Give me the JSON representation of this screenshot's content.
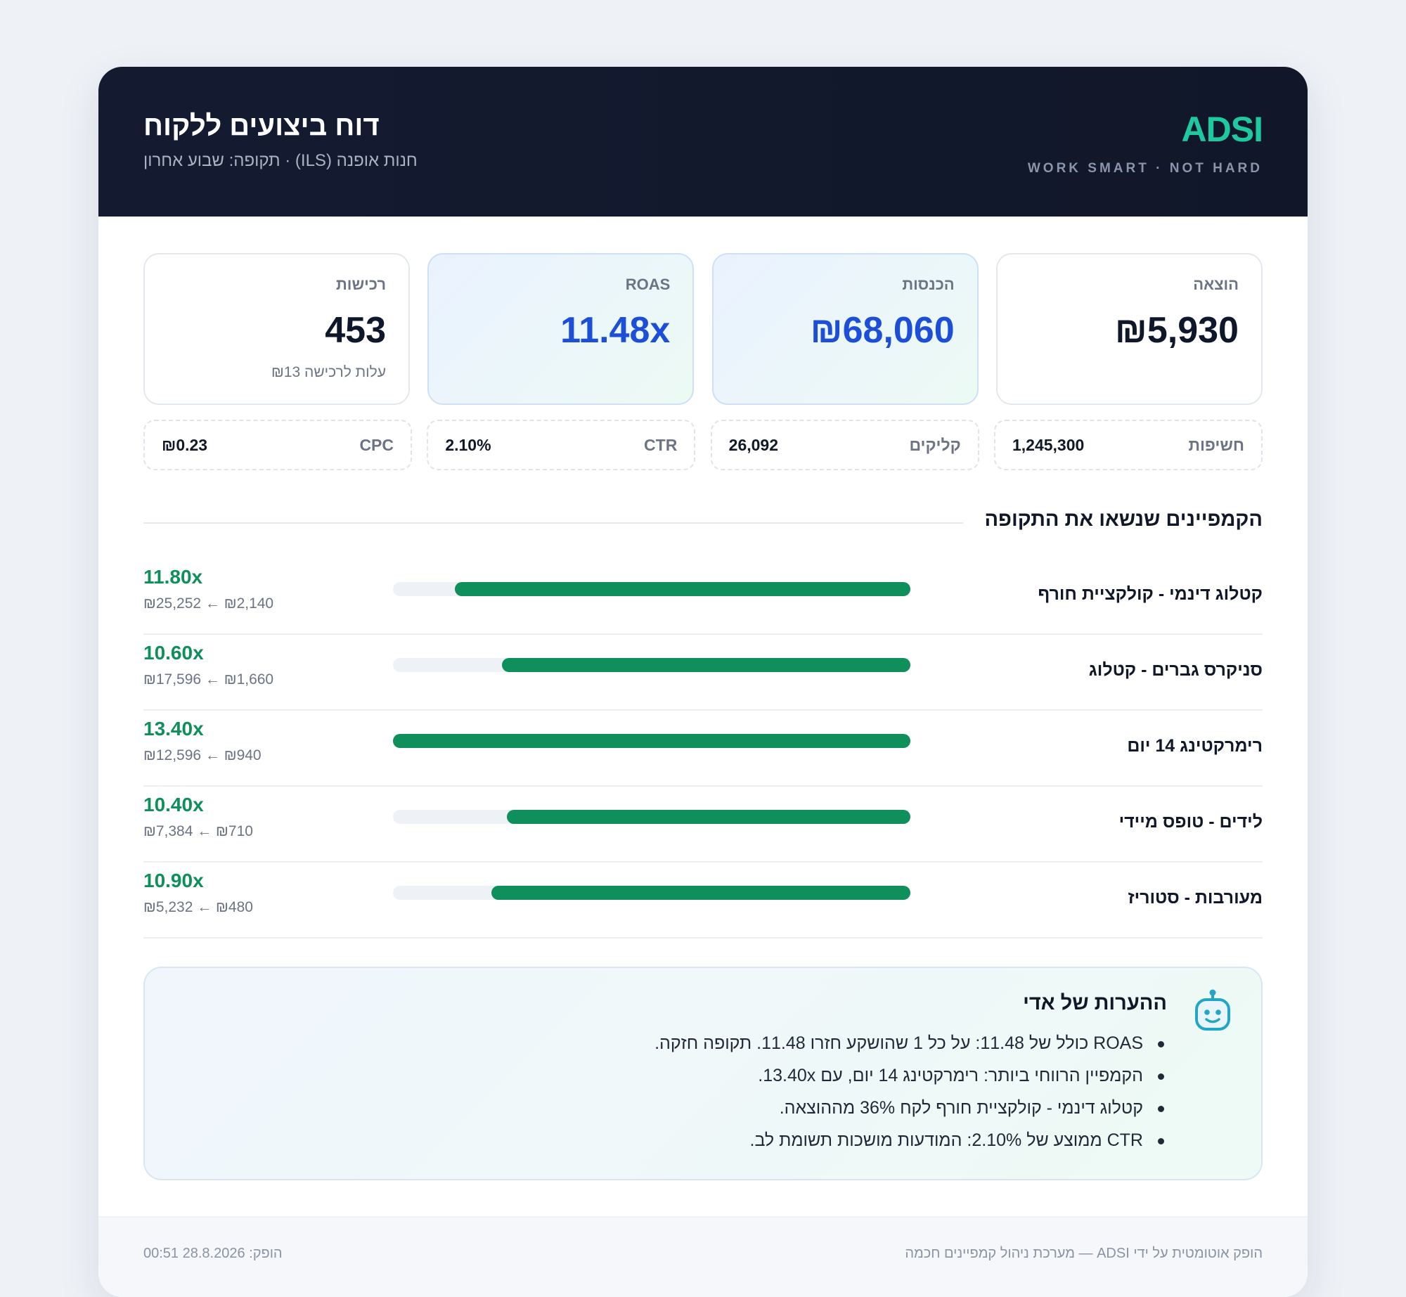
{
  "header": {
    "title": "דוח ביצועים ללקוח",
    "subtitle": "חנות אופנה (ILS) · תקופה: שבוע אחרון",
    "brand": "ADSI",
    "tagline": "WORK SMART · NOT HARD"
  },
  "kpis": [
    {
      "label": "הוצאה",
      "value": "₪5,930",
      "note": ""
    },
    {
      "label": "הכנסות",
      "value": "₪68,060",
      "note": ""
    },
    {
      "label": "ROAS",
      "value": "11.48x",
      "note": ""
    },
    {
      "label": "רכישות",
      "value": "453",
      "note": "עלות לרכישה ₪13"
    }
  ],
  "metrics": [
    {
      "label": "חשיפות",
      "value": "1,245,300"
    },
    {
      "label": "קליקים",
      "value": "26,092"
    },
    {
      "label": "CTR",
      "value": "2.10%"
    },
    {
      "label": "CPC",
      "value": "₪0.23"
    }
  ],
  "campaigns_title": "הקמפיינים שנשאו את התקופה",
  "campaigns": [
    {
      "name": "קטלוג דינמי - קולקציית חורף",
      "roas": "11.80x",
      "flow": "₪25,252 ← ₪2,140",
      "bar_fraction": 0.88
    },
    {
      "name": "סניקרס גברים - קטלוג",
      "roas": "10.60x",
      "flow": "₪17,596 ← ₪1,660",
      "bar_fraction": 0.79
    },
    {
      "name": "רימרקטינג 14 יום",
      "roas": "13.40x",
      "flow": "₪12,596 ← ₪940",
      "bar_fraction": 1.0
    },
    {
      "name": "לידים - טופס מיידי",
      "roas": "10.40x",
      "flow": "₪7,384 ← ₪710",
      "bar_fraction": 0.78
    },
    {
      "name": "מעורבות - סטוריז",
      "roas": "10.90x",
      "flow": "₪5,232 ← ₪480",
      "bar_fraction": 0.81
    }
  ],
  "notes": {
    "title": "ההערות של אדי",
    "items": [
      "ROAS כולל של 11.48: על כל 1 שהושקע חזרו 11.48. תקופה חזקה.",
      "הקמפיין הרווחי ביותר: רימרקטינג 14 יום, עם 13.40x.",
      "קטלוג דינמי - קולקציית חורף לקח 36% מההוצאה.",
      "CTR ממוצע של 2.10%: המודעות מושכות תשומת לב."
    ]
  },
  "footer": {
    "left": "הופק אוטומטית על ידי ADSI — מערכת ניהול קמפיינים חכמה",
    "right": "הופק: 28.8.2026 00:51"
  },
  "colors": {
    "accent": "#1fc9a0",
    "bar": "#0e8f5b",
    "kpi_blue": "#1d4ed8",
    "header_bg": "#141b31"
  }
}
